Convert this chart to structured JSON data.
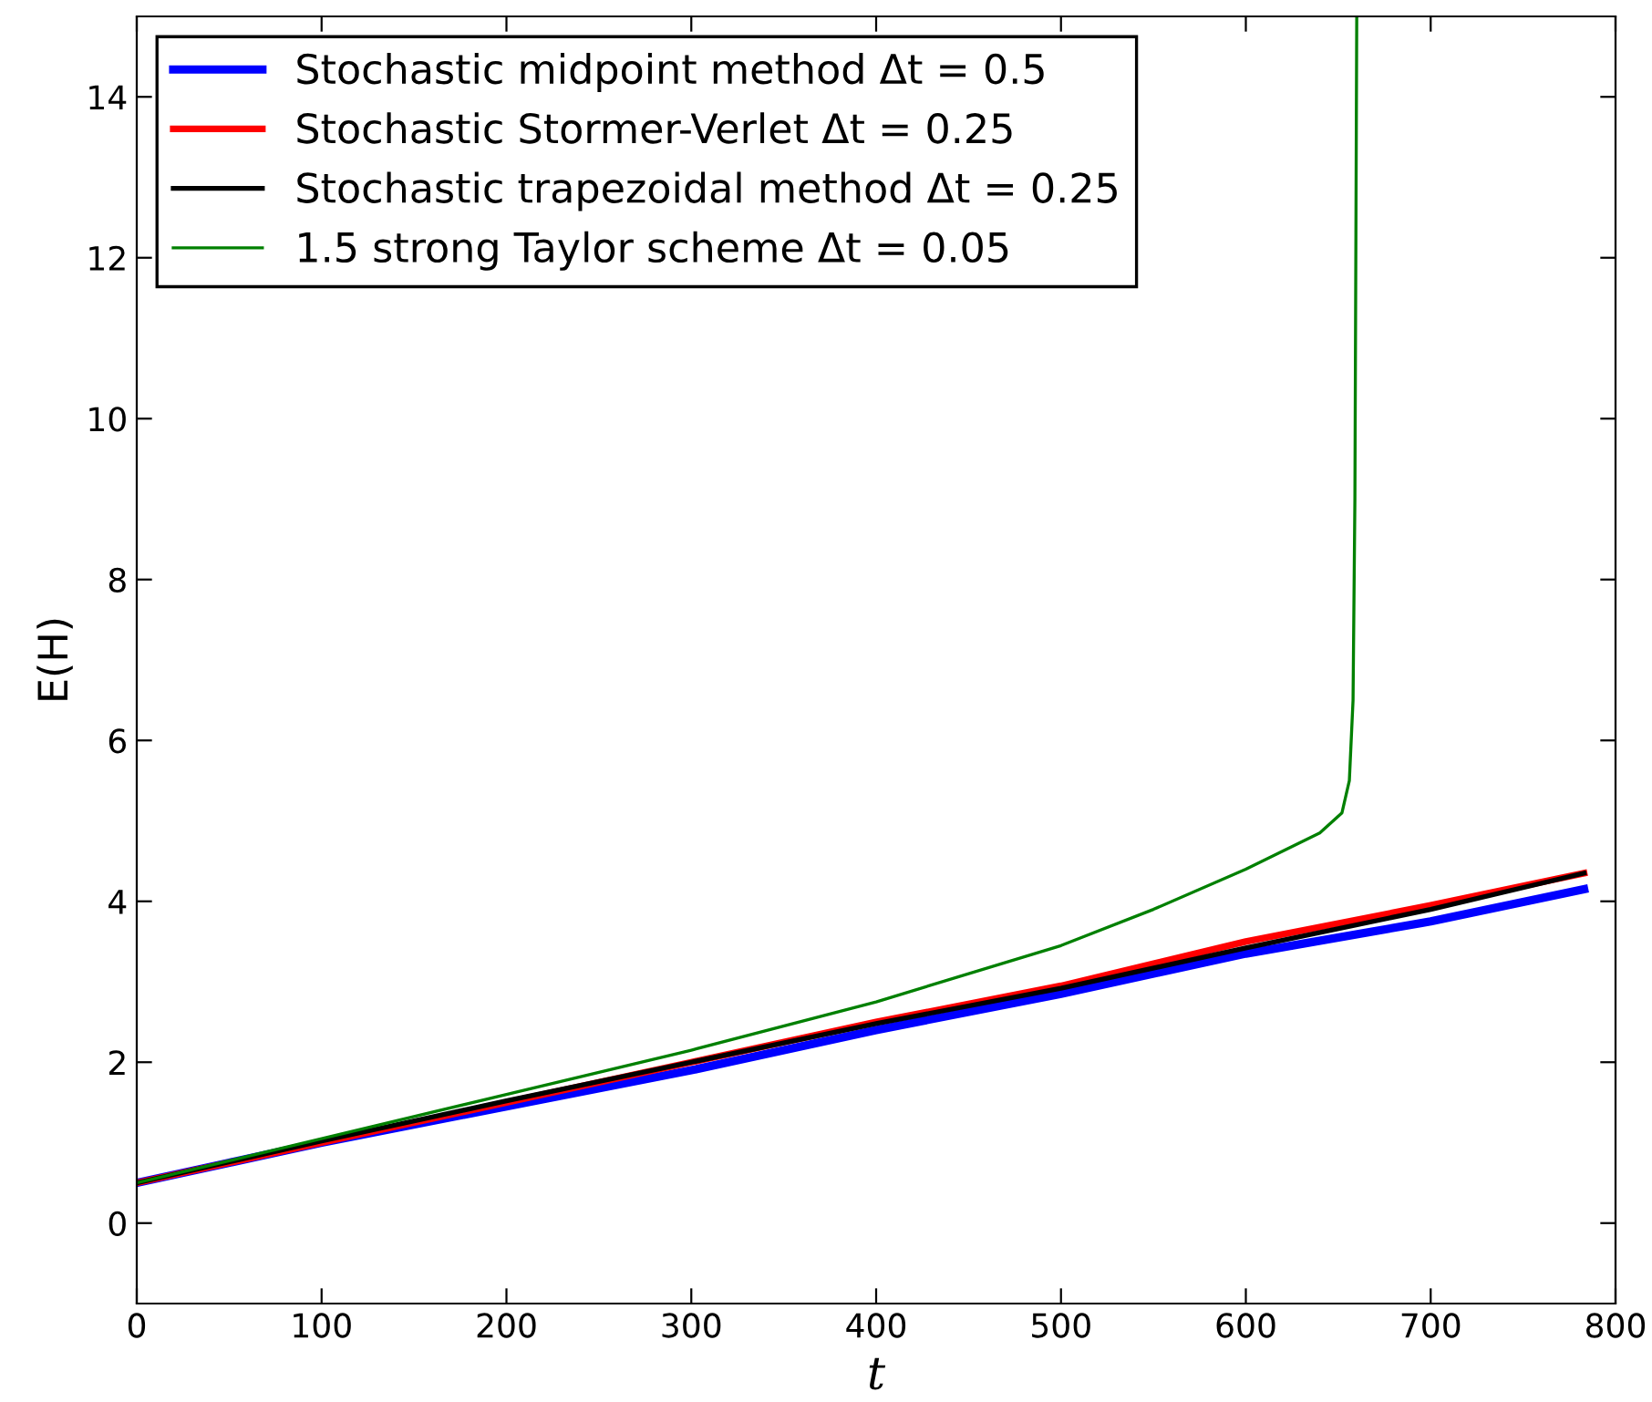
{
  "chart_data": {
    "type": "line",
    "xlabel": "t",
    "ylabel": "E(H)",
    "xlim": [
      0,
      800
    ],
    "ylim": [
      -1,
      15
    ],
    "xticks": [
      0,
      100,
      200,
      300,
      400,
      500,
      600,
      700,
      800
    ],
    "yticks": [
      0,
      2,
      4,
      6,
      8,
      10,
      12,
      14
    ],
    "grid": false,
    "legend": "top left",
    "marker": "none",
    "line_style": "solid",
    "series": [
      {
        "name": "Stochastic midpoint method Δt = 0.5",
        "color": "#0000ff",
        "x": [
          0,
          100,
          200,
          300,
          400,
          500,
          600,
          700,
          783
        ],
        "values": [
          0.5,
          1.0,
          1.45,
          1.9,
          2.4,
          2.85,
          3.35,
          3.75,
          4.15
        ]
      },
      {
        "name": "Stochastic Stormer-Verlet Δt = 0.25",
        "color": "#ff0000",
        "x": [
          0,
          100,
          200,
          300,
          400,
          500,
          600,
          700,
          783
        ],
        "values": [
          0.5,
          1.0,
          1.5,
          2.0,
          2.5,
          2.95,
          3.5,
          3.95,
          4.35
        ]
      },
      {
        "name": "Stochastic trapezoidal method Δt = 0.25",
        "color": "#000000",
        "x": [
          0,
          100,
          200,
          300,
          400,
          500,
          600,
          700,
          783
        ],
        "values": [
          0.5,
          1.02,
          1.52,
          2.0,
          2.48,
          2.92,
          3.42,
          3.9,
          4.35
        ]
      },
      {
        "name": "1.5 strong Taylor scheme Δt = 0.05",
        "color": "#008000",
        "x": [
          0,
          100,
          200,
          300,
          400,
          500,
          550,
          600,
          640,
          652,
          656,
          658,
          659,
          660
        ],
        "values": [
          0.5,
          1.05,
          1.6,
          2.15,
          2.75,
          3.45,
          3.9,
          4.4,
          4.85,
          5.1,
          5.5,
          6.5,
          9,
          15
        ]
      }
    ]
  }
}
